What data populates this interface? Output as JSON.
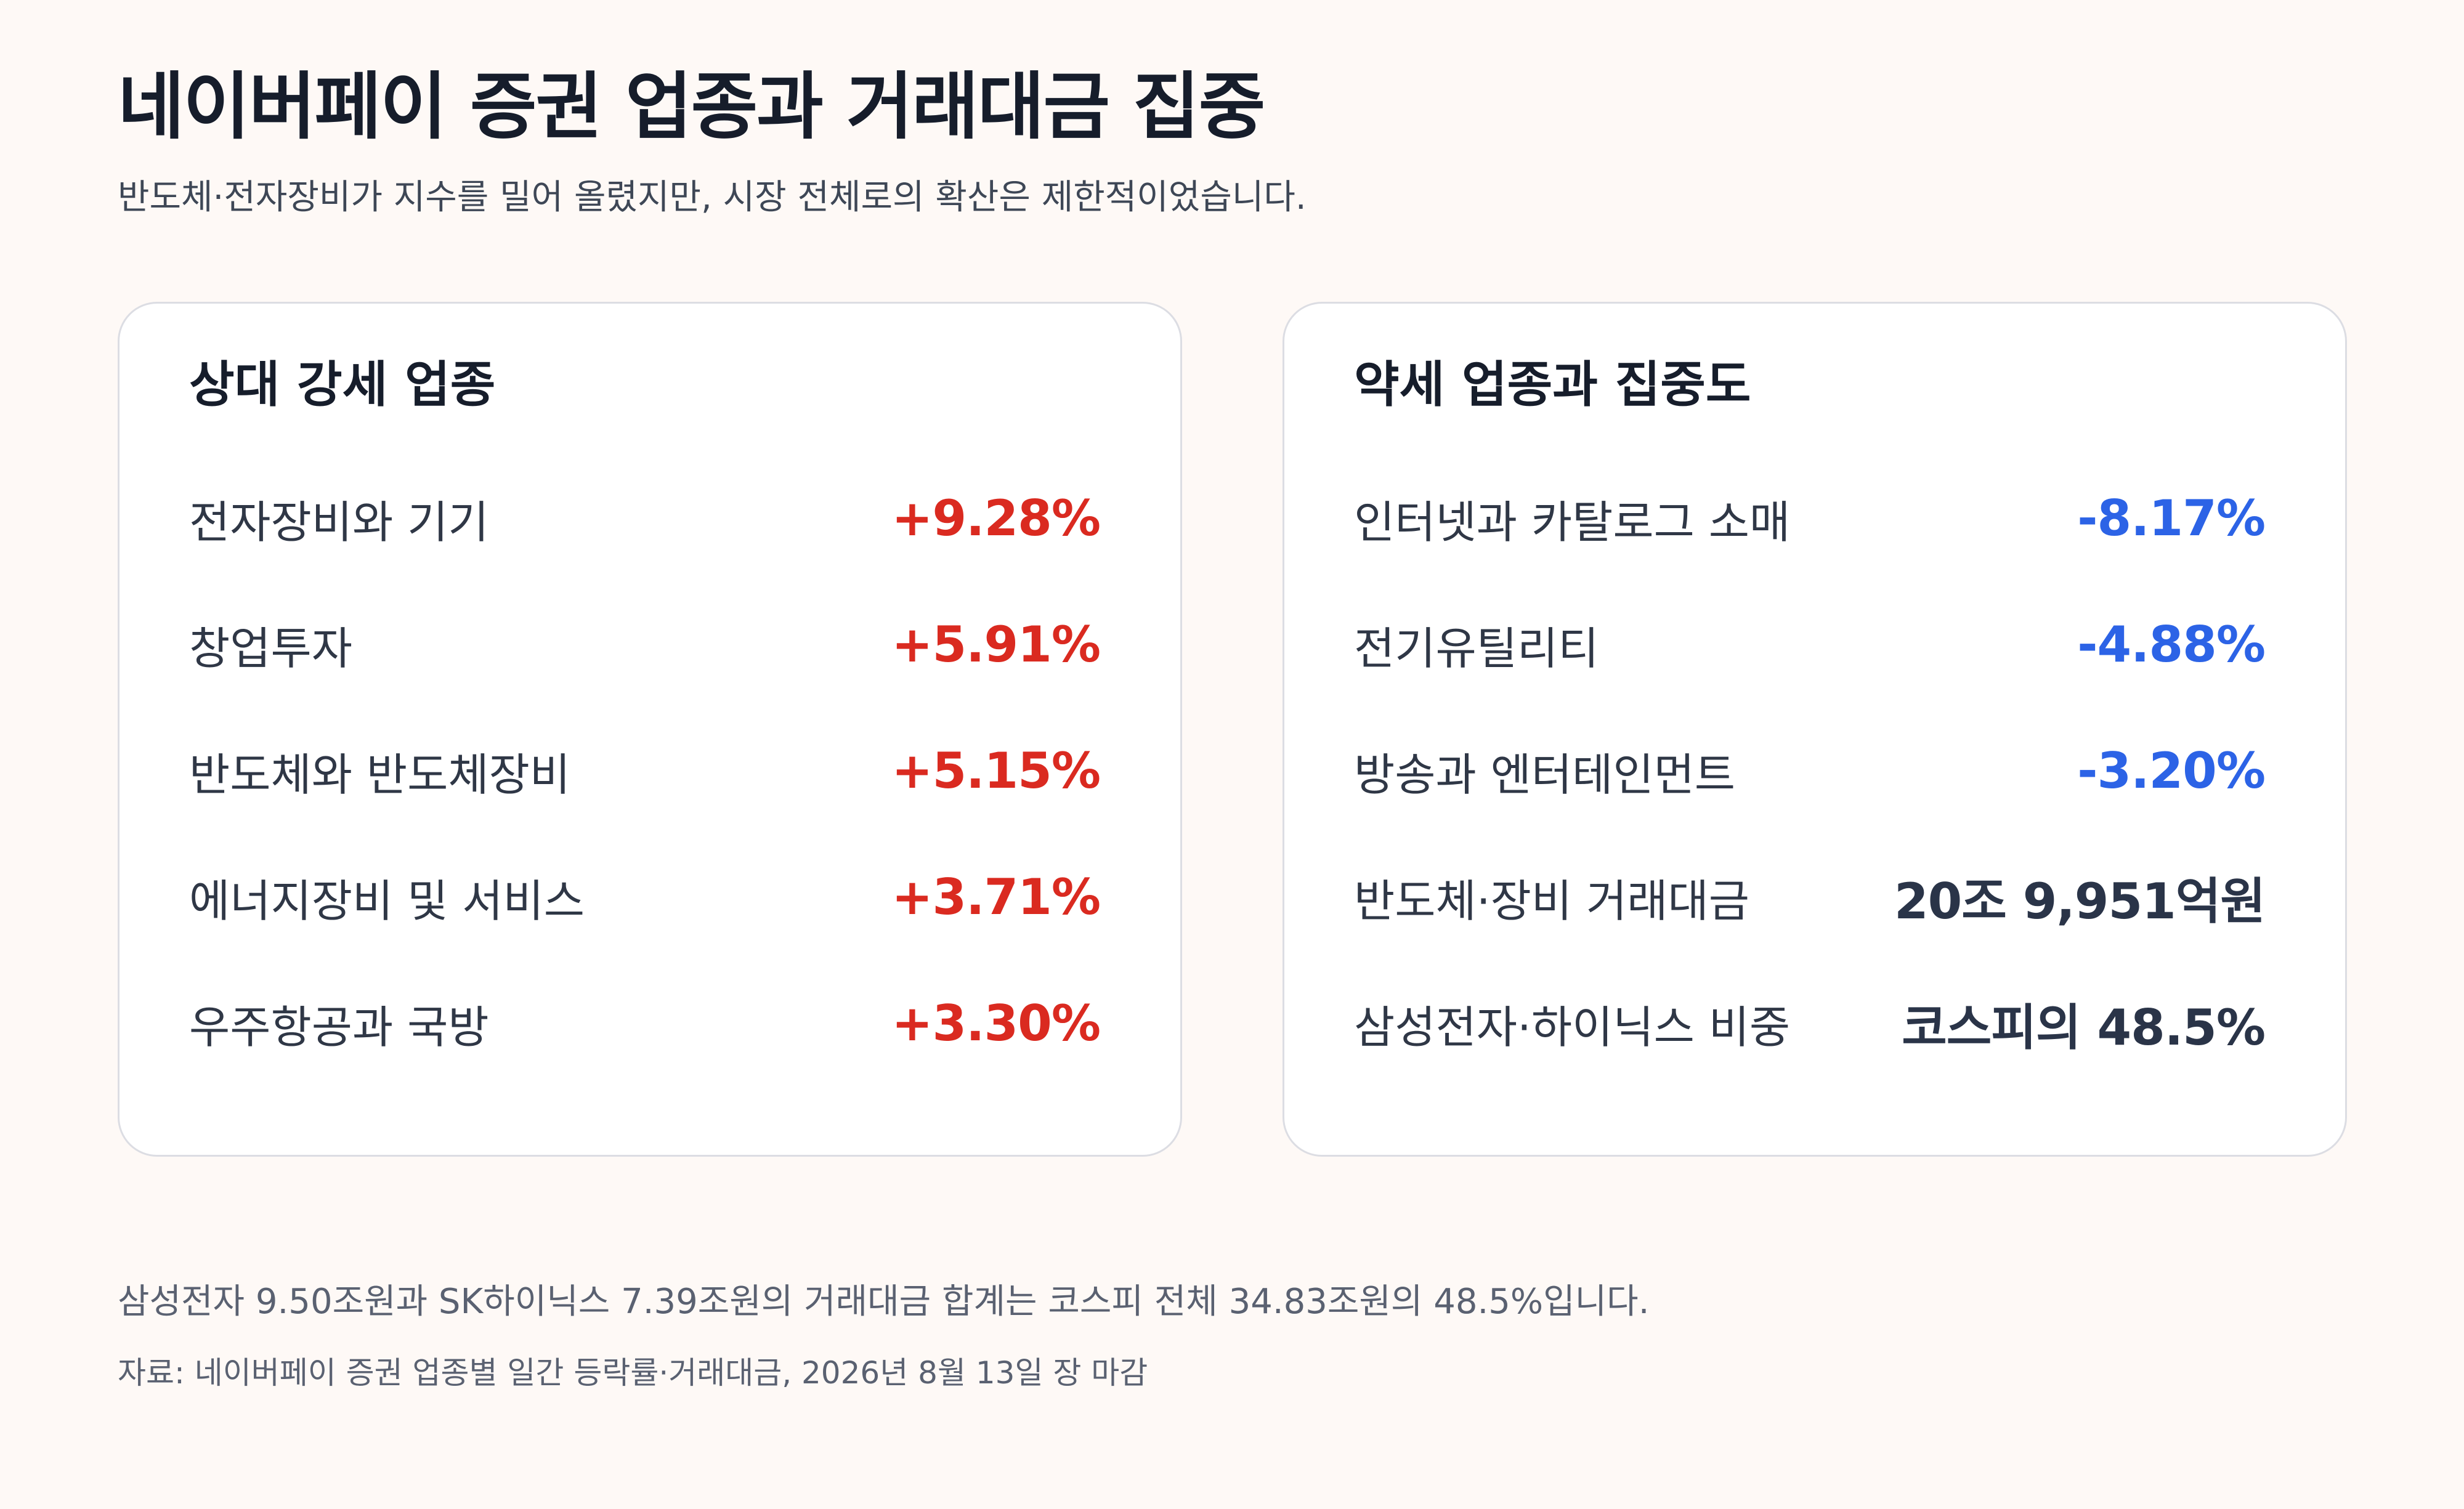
{
  "title": "네이버페이 증권 업종과 거래대금 집중",
  "subtitle": "반도체·전자장비가 지수를 밀어 올렸지만, 시장 전체로의 확산은 제한적이었습니다.",
  "colors": {
    "up": "#da2a20",
    "down": "#2c63e6",
    "neutral": "#2a3448",
    "background": "#fef9f6"
  },
  "strong_card": {
    "title": "상대 강세 업종",
    "rows": [
      {
        "label": "전자장비와 기기",
        "value": "+9.28%"
      },
      {
        "label": "창업투자",
        "value": "+5.91%"
      },
      {
        "label": "반도체와 반도체장비",
        "value": "+5.15%"
      },
      {
        "label": "에너지장비 및 서비스",
        "value": "+3.71%"
      },
      {
        "label": "우주항공과 국방",
        "value": "+3.30%"
      }
    ]
  },
  "weak_card": {
    "title": "약세 업종과 집중도",
    "rows": [
      {
        "label": "인터넷과 카탈로그 소매",
        "value": "-8.17%"
      },
      {
        "label": "전기유틸리티",
        "value": "-4.88%"
      },
      {
        "label": "방송과 엔터테인먼트",
        "value": "-3.20%"
      },
      {
        "label": "반도체·장비 거래대금",
        "value": "20조 9,951억원"
      },
      {
        "label": "삼성전자·하이닉스 비중",
        "value": "코스피의 48.5%"
      }
    ]
  },
  "note": "삼성전자 9.50조원과 SK하이닉스 7.39조원의 거래대금 합계는 코스피 전체 34.83조원의 48.5%입니다.",
  "source": "자료: 네이버페이 증권 업종별 일간 등락률·거래대금, 2026년 8월 13일 장 마감"
}
